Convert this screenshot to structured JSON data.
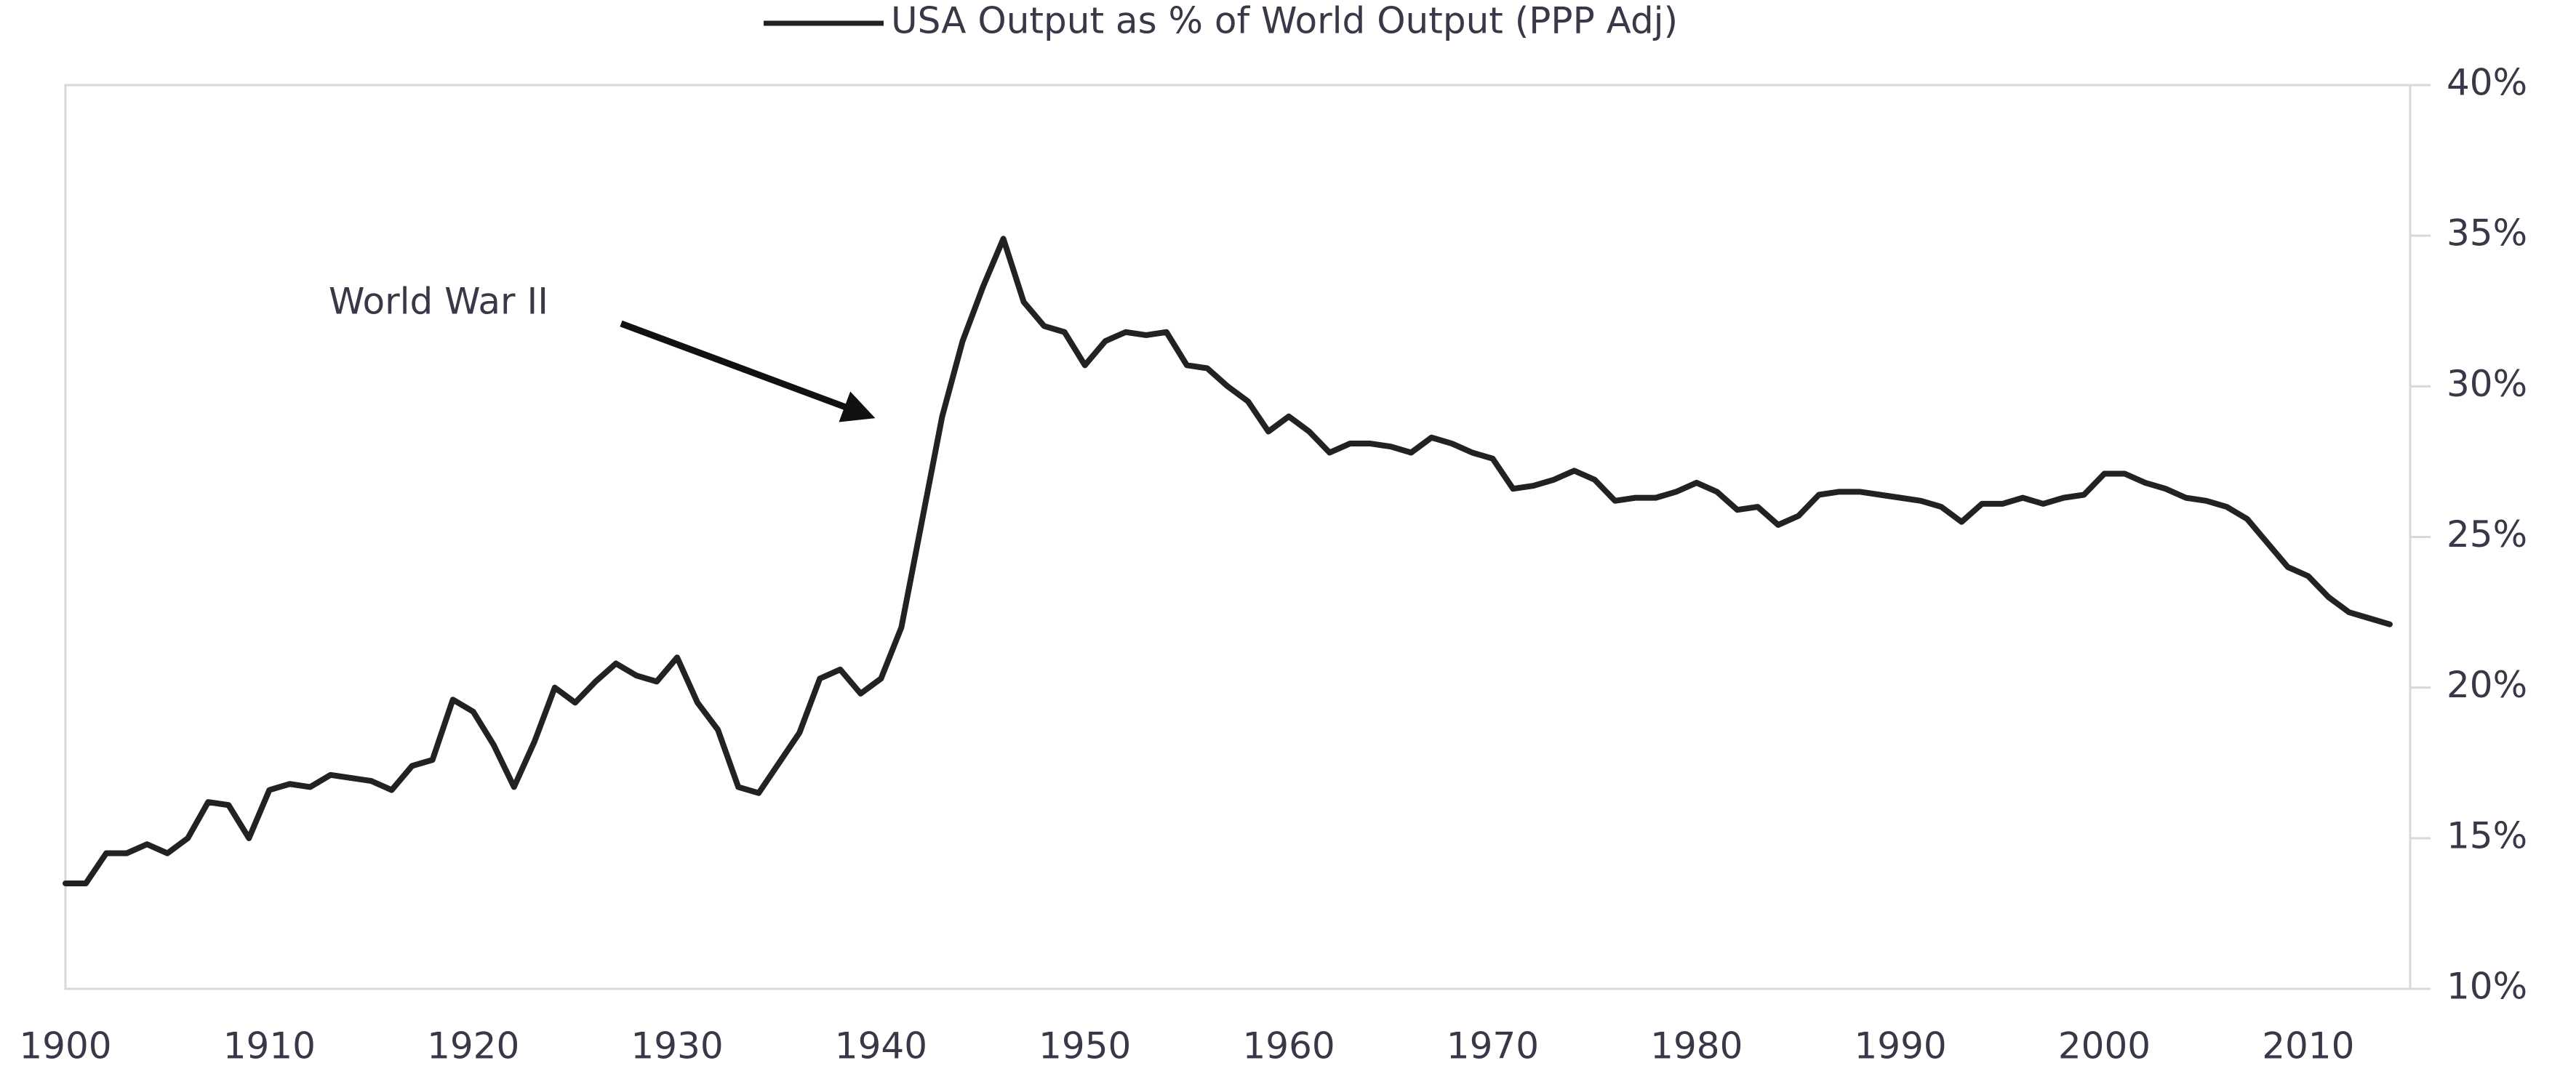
{
  "chart_data": {
    "type": "line",
    "legend_position": "top",
    "grid": false,
    "annotation": "World War II",
    "x": [
      1900,
      1901,
      1902,
      1903,
      1904,
      1905,
      1906,
      1907,
      1908,
      1909,
      1910,
      1911,
      1912,
      1913,
      1914,
      1915,
      1916,
      1917,
      1918,
      1919,
      1920,
      1921,
      1922,
      1923,
      1924,
      1925,
      1926,
      1927,
      1928,
      1929,
      1930,
      1931,
      1932,
      1933,
      1934,
      1935,
      1936,
      1937,
      1938,
      1939,
      1940,
      1941,
      1942,
      1943,
      1944,
      1945,
      1946,
      1947,
      1948,
      1949,
      1950,
      1951,
      1952,
      1953,
      1954,
      1955,
      1956,
      1957,
      1958,
      1959,
      1960,
      1961,
      1962,
      1963,
      1964,
      1965,
      1966,
      1967,
      1968,
      1969,
      1970,
      1971,
      1972,
      1973,
      1974,
      1975,
      1976,
      1977,
      1978,
      1979,
      1980,
      1981,
      1982,
      1983,
      1984,
      1985,
      1986,
      1987,
      1988,
      1989,
      1990,
      1991,
      1992,
      1993,
      1994,
      1995,
      1996,
      1997,
      1998,
      1999,
      2000,
      2001,
      2002,
      2003,
      2004,
      2005,
      2006,
      2007,
      2008,
      2009,
      2010,
      2011,
      2012,
      2013,
      2014
    ],
    "series": [
      {
        "name": "USA Output as % of World Output (PPP Adj)",
        "color": "#222222",
        "values": [
          13.5,
          13.5,
          14.5,
          14.5,
          14.8,
          14.5,
          15.0,
          16.2,
          16.1,
          15.0,
          16.6,
          16.8,
          16.7,
          17.1,
          17.0,
          16.9,
          16.6,
          17.4,
          17.6,
          19.6,
          19.2,
          18.1,
          16.7,
          18.2,
          20.0,
          19.5,
          20.2,
          20.8,
          20.4,
          20.2,
          21.0,
          19.5,
          18.6,
          16.7,
          16.5,
          17.5,
          18.5,
          20.3,
          20.6,
          19.8,
          20.3,
          22.0,
          25.5,
          29.0,
          31.5,
          33.3,
          34.9,
          32.8,
          32.0,
          31.8,
          30.7,
          31.5,
          31.8,
          31.7,
          31.8,
          30.7,
          30.6,
          30.0,
          29.5,
          28.5,
          29.0,
          28.5,
          27.8,
          28.1,
          28.1,
          28.0,
          27.8,
          28.3,
          28.1,
          27.8,
          27.6,
          26.6,
          26.7,
          26.9,
          27.2,
          26.9,
          26.2,
          26.3,
          26.3,
          26.5,
          26.8,
          26.5,
          25.9,
          26.0,
          25.4,
          25.7,
          26.4,
          26.5,
          26.5,
          26.4,
          26.3,
          26.2,
          26.0,
          25.5,
          26.1,
          26.1,
          26.3,
          26.1,
          26.3,
          26.4,
          27.1,
          27.1,
          26.8,
          26.6,
          26.3,
          26.2,
          26.0,
          25.6,
          24.8,
          24.0,
          23.7,
          23.0,
          22.5,
          22.3,
          22.1
        ]
      }
    ],
    "xlim": [
      1900,
      2015
    ],
    "xticks": [
      1900,
      1910,
      1920,
      1930,
      1940,
      1950,
      1960,
      1970,
      1980,
      1990,
      2000,
      2010
    ],
    "ylim": [
      10,
      40
    ],
    "yticks": [
      {
        "value": 10,
        "label": "10%"
      },
      {
        "value": 15,
        "label": "15%"
      },
      {
        "value": 20,
        "label": "20%"
      },
      {
        "value": 25,
        "label": "25%"
      },
      {
        "value": 30,
        "label": "30%"
      },
      {
        "value": 35,
        "label": "35%"
      },
      {
        "value": 40,
        "label": "40%"
      }
    ]
  }
}
